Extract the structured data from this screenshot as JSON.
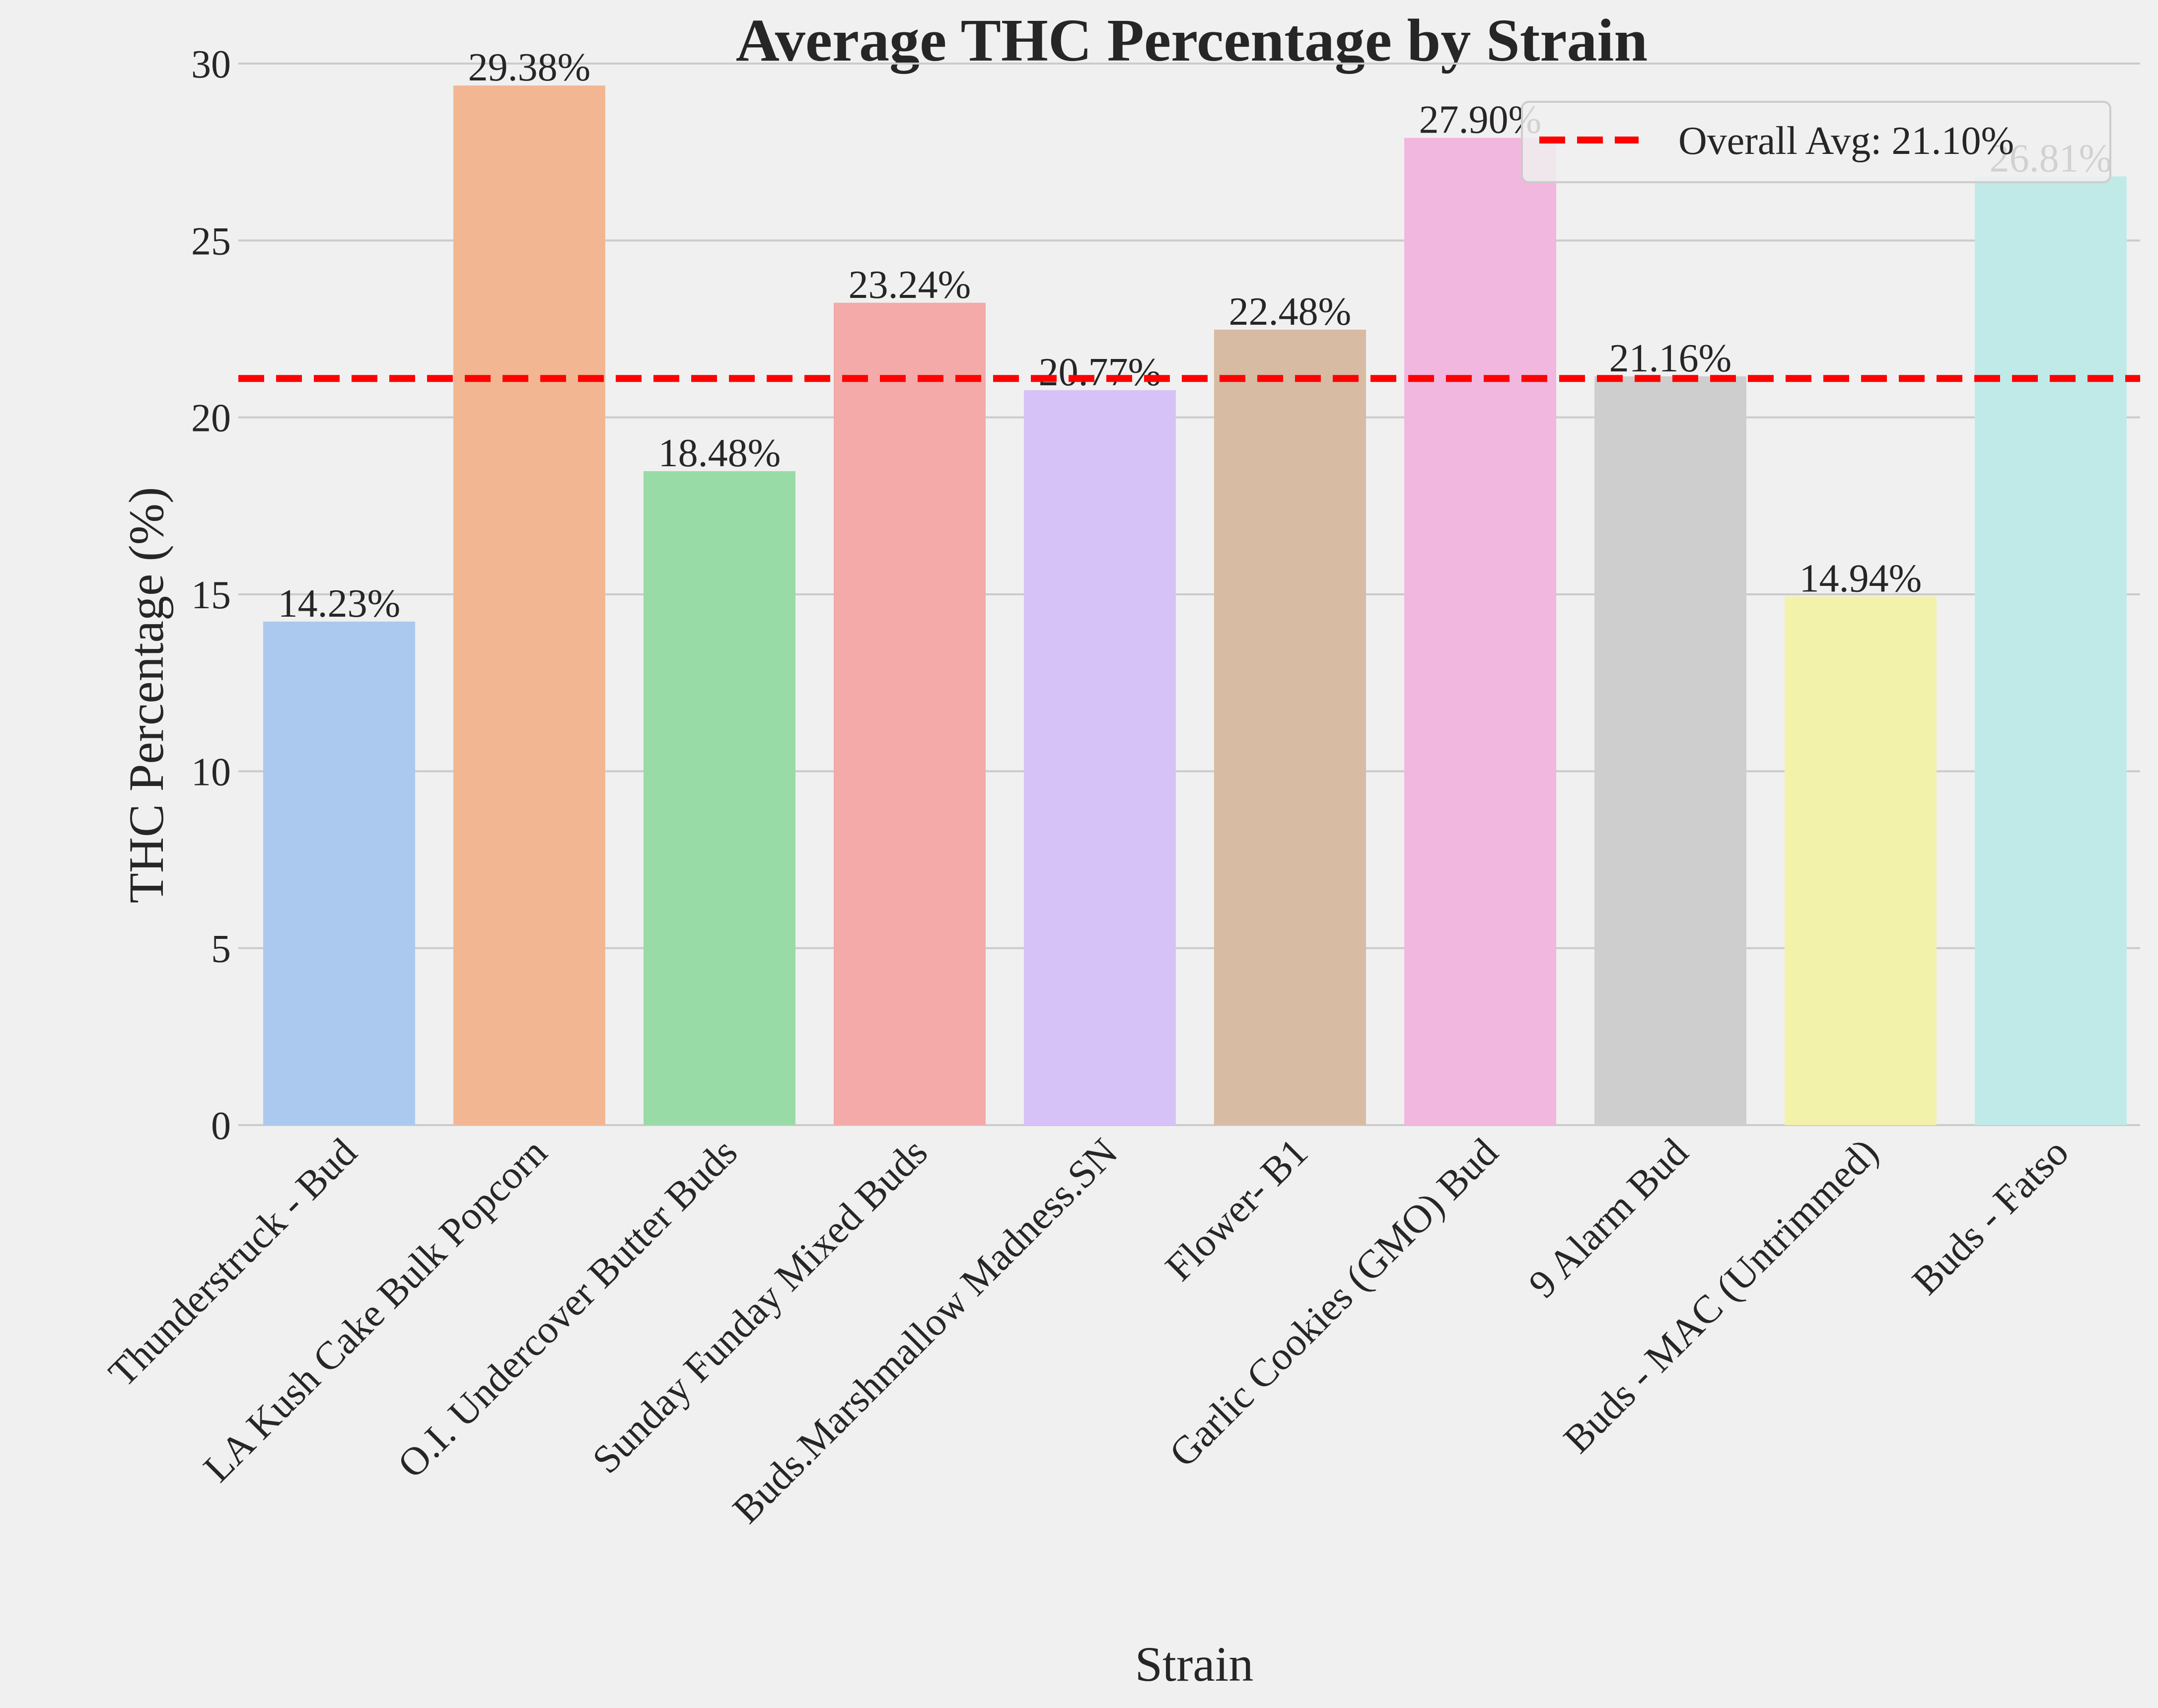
{
  "chart_data": {
    "type": "bar",
    "title": "Average THC Percentage by Strain",
    "xlabel": "Strain",
    "ylabel": "THC Percentage (%)",
    "ylim": [
      0,
      30
    ],
    "yticks": [
      0,
      5,
      10,
      15,
      20,
      25,
      30
    ],
    "grid": "horizontal",
    "legend_placement": "top-right",
    "categories": [
      "Thunderstruck - Bud",
      "LA Kush Cake Bulk Popcorn",
      "O.I. Undercover Butter Buds",
      "Sunday Funday Mixed Buds",
      "Buds.Marshmallow Madness.SN",
      "Flower- B1",
      "Garlic Cookies (GMO) Bud",
      "9 Alarm Bud",
      "Buds - MAC (Untrimmed)",
      "Buds - Fatso"
    ],
    "values": [
      14.23,
      29.38,
      18.48,
      23.24,
      20.77,
      22.48,
      27.9,
      21.16,
      14.94,
      26.81
    ],
    "value_labels": [
      "14.23%",
      "29.38%",
      "18.48%",
      "23.24%",
      "20.77%",
      "22.48%",
      "27.90%",
      "21.16%",
      "14.94%",
      "26.81%"
    ],
    "colors": [
      "#abc9ee",
      "#f2b792",
      "#98dba6",
      "#f3aaa8",
      "#d6c2f7",
      "#d7bba3",
      "#f1b7de",
      "#cecece",
      "#f3f2ab",
      "#c0eae8"
    ],
    "reference_line": {
      "value": 21.1,
      "label": "Overall Avg: 21.10%",
      "color": "#ff0000",
      "style": "dashed"
    }
  }
}
